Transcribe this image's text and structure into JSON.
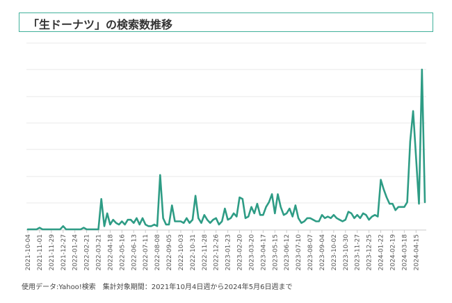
{
  "header": {
    "title": "「生ドーナツ」の検索数推移"
  },
  "footnote": "使用データ:Yahoo!検索　集計対象期間：2021年10月4日週から2024年5月6日週まで",
  "colors": {
    "line": "#2e9c85",
    "title_border": "#40b09a",
    "grid": "#e8e8e8",
    "axis": "#c8c8c8",
    "tick_text": "#555555"
  },
  "chart_data": {
    "type": "line",
    "title": "「生ドーナツ」の検索数推移",
    "xlabel": "",
    "ylabel": "",
    "grid": true,
    "legend": "none",
    "ylim": [
      0,
      100
    ],
    "x_start": "2021-10-04",
    "x_end": "2024-05-06",
    "tick_labels": [
      "2021-10-04",
      "2021-11-01",
      "2021-11-29",
      "2021-12-27",
      "2022-01-24",
      "2022-02-21",
      "2022-03-21",
      "2022-04-18",
      "2022-05-16",
      "2022-06-13",
      "2022-07-11",
      "2022-08-08",
      "2022-09-05",
      "2022-10-03",
      "2022-10-31",
      "2022-11-28",
      "2022-12-26",
      "2023-01-23",
      "2023-02-20",
      "2023-03-20",
      "2023-04-17",
      "2023-05-15",
      "2023-06-12",
      "2023-07-10",
      "2023-08-07",
      "2023-09-04",
      "2023-10-02",
      "2023-10-30",
      "2023-11-27",
      "2023-12-25",
      "2024-01-22",
      "2024-02-19",
      "2024-03-18",
      "2024-04-15"
    ],
    "series": [
      {
        "values": [
          0,
          0,
          0,
          0,
          1,
          0,
          0,
          0,
          0,
          0,
          0,
          0,
          2,
          0,
          0,
          0,
          0,
          0,
          0,
          1,
          0,
          0,
          0,
          0,
          0,
          19,
          2,
          10,
          3,
          6,
          4,
          3,
          5,
          3,
          6,
          6,
          4,
          7,
          3,
          7,
          3,
          2,
          2,
          3,
          2,
          34,
          7,
          3,
          3,
          15,
          5,
          5,
          5,
          4,
          7,
          4,
          6,
          21,
          7,
          4,
          9,
          6,
          4,
          6,
          7,
          3,
          5,
          13,
          6,
          7,
          10,
          8,
          20,
          19,
          7,
          8,
          14,
          10,
          16,
          9,
          9,
          14,
          17,
          22,
          10,
          22,
          14,
          9,
          10,
          13,
          8,
          15,
          7,
          4,
          5,
          7,
          7,
          6,
          5,
          5,
          9,
          7,
          8,
          7,
          9,
          7,
          6,
          5,
          6,
          11,
          10,
          7,
          9,
          7,
          10,
          9,
          6,
          8,
          9,
          8,
          31,
          25,
          20,
          16,
          16,
          12,
          14,
          14,
          14,
          17,
          55,
          74,
          45,
          16,
          100,
          17
        ]
      }
    ]
  }
}
